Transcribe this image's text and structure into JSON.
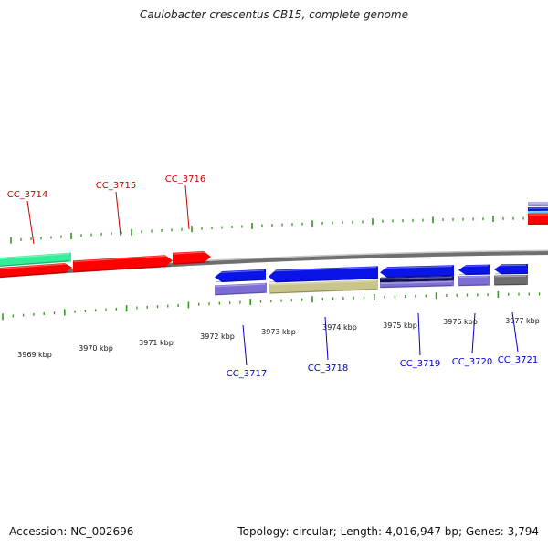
{
  "title": "Caulobacter crescentus CB15, complete genome",
  "footer": {
    "accession": "Accession: NC_002696",
    "summary": "Topology: circular; Length: 4,016,947 bp; Genes: 3,794"
  },
  "colors": {
    "backbone": "#8c8c8c",
    "tick": "#2e9a1c",
    "forward_label": "#cc0000",
    "reverse_label": "#0000cc",
    "red": "#ff0000",
    "teal": "#33ee99",
    "blue": "#0a14e6",
    "lavender": "#7b6fd6",
    "khaki": "#c8c48a",
    "navy": "#14145a",
    "gray": "#6e6e6e",
    "cyan": "#33ddff"
  },
  "scale": {
    "labels": [
      "3969 kbp",
      "3970 kbp",
      "3971 kbp",
      "3972 kbp",
      "3973 kbp",
      "3974 kbp",
      "3975 kbp",
      "3976 kbp",
      "3977 kbp"
    ]
  },
  "forward_genes": [
    {
      "name": "CC_3714",
      "color": "red"
    },
    {
      "name": "CC_3715",
      "color": "red"
    },
    {
      "name": "CC_3716",
      "color": "red"
    }
  ],
  "reverse_genes": [
    {
      "name": "CC_3717",
      "color": "blue"
    },
    {
      "name": "CC_3718",
      "color": "blue"
    },
    {
      "name": "CC_3719",
      "color": "blue"
    },
    {
      "name": "CC_3720",
      "color": "blue"
    },
    {
      "name": "CC_3721",
      "color": "blue"
    }
  ]
}
